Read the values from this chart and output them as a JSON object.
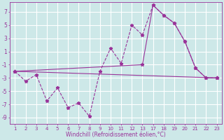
{
  "xlabel": "Windchill (Refroidissement éolien,°C)",
  "background_color": "#cde8e8",
  "grid_color": "#ffffff",
  "line_color": "#993399",
  "x_labels": [
    "1",
    "2",
    "3",
    "4",
    "5",
    "6",
    "7",
    "8",
    "9",
    "10",
    "11",
    "12",
    "13",
    "17",
    "18",
    "19",
    "20",
    "21",
    "22",
    "23"
  ],
  "ylim": [
    -10,
    8.5
  ],
  "yticks": [
    -9,
    -7,
    -5,
    -3,
    -1,
    1,
    3,
    5,
    7
  ],
  "series1_y": [
    -2.0,
    -3.5,
    -2.5,
    -6.5,
    -4.5,
    -7.5,
    -6.8,
    -8.8,
    -2.0,
    1.5,
    -0.8,
    5.0,
    3.5,
    8.0,
    6.5,
    5.3,
    2.5,
    -1.5,
    -3.0,
    -3.0
  ],
  "series2_indices": [
    0,
    12,
    13,
    14,
    15,
    16,
    17,
    18,
    19
  ],
  "series2_y": [
    -2.0,
    -1.0,
    8.0,
    6.5,
    5.3,
    2.5,
    -1.5,
    -3.0,
    -3.0
  ],
  "series3_indices": [
    0,
    19
  ],
  "series3_y": [
    -2.0,
    -3.0
  ]
}
